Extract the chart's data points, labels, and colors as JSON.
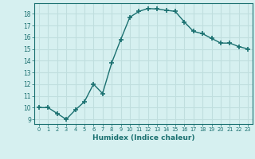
{
  "x": [
    0,
    1,
    2,
    3,
    4,
    5,
    6,
    7,
    8,
    9,
    10,
    11,
    12,
    13,
    14,
    15,
    16,
    17,
    18,
    19,
    20,
    21,
    22,
    23
  ],
  "y": [
    10,
    10,
    9.5,
    9,
    9.8,
    10.5,
    12,
    11.2,
    13.8,
    15.8,
    17.7,
    18.2,
    18.45,
    18.4,
    18.3,
    18.2,
    17.3,
    16.5,
    16.3,
    15.9,
    15.5,
    15.5,
    15.2,
    15.0
  ],
  "xlim": [
    -0.5,
    23.5
  ],
  "ylim": [
    8.6,
    18.9
  ],
  "yticks": [
    9,
    10,
    11,
    12,
    13,
    14,
    15,
    16,
    17,
    18
  ],
  "xticks": [
    0,
    1,
    2,
    3,
    4,
    5,
    6,
    7,
    8,
    9,
    10,
    11,
    12,
    13,
    14,
    15,
    16,
    17,
    18,
    19,
    20,
    21,
    22,
    23
  ],
  "xlabel": "Humidex (Indice chaleur)",
  "line_color": "#1a7070",
  "marker_color": "#1a7070",
  "bg_color": "#d6f0f0",
  "grid_color": "#c0dede",
  "tick_label_color": "#1a7070",
  "xlabel_color": "#1a7070",
  "marker_size": 4,
  "line_width": 1.0
}
